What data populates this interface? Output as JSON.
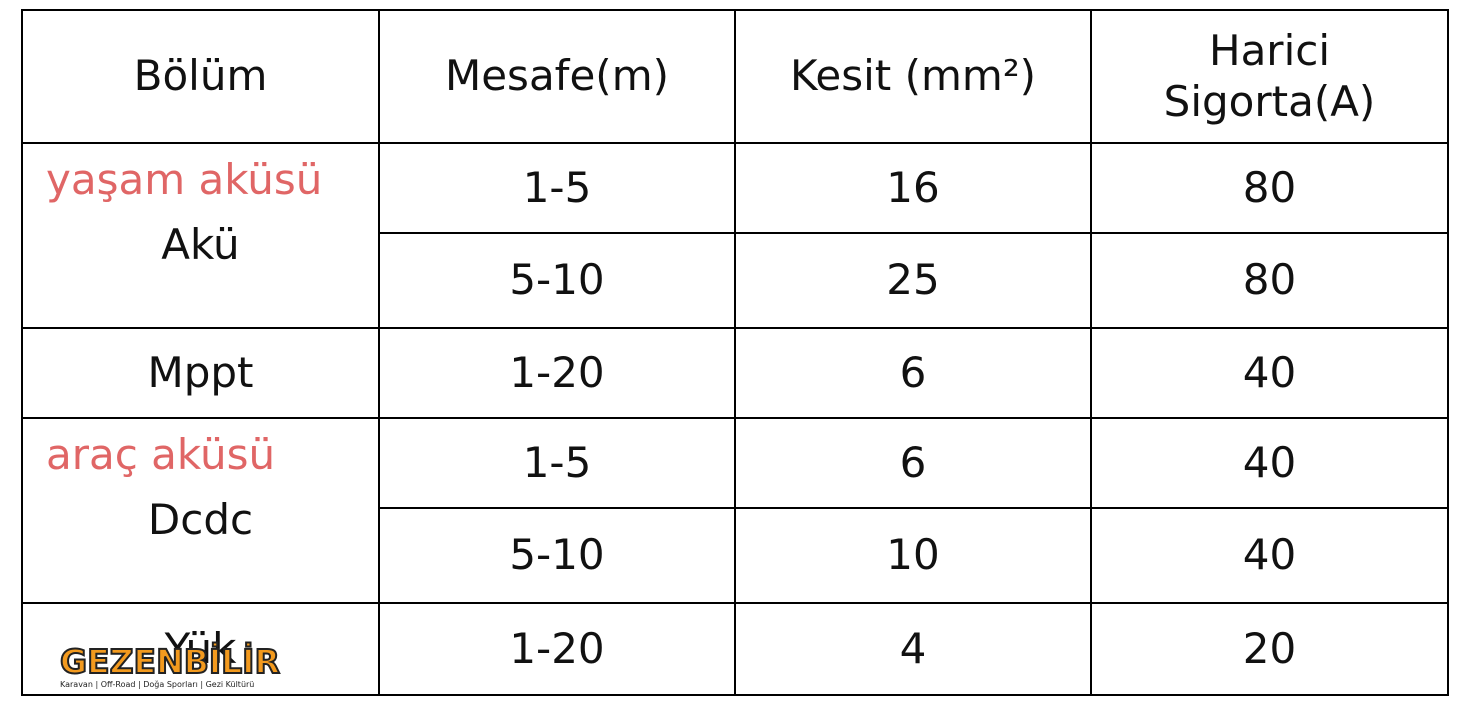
{
  "table": {
    "header": [
      "Bölüm",
      "Mesafe(m)",
      "Kesit (mm²)",
      "Harici Sigorta(A)"
    ],
    "groups": [
      {
        "section": "Akü",
        "annotation": "yaşam aküsü",
        "rows": [
          [
            "1-5",
            16,
            80
          ],
          [
            "5-10",
            25,
            80
          ]
        ]
      },
      {
        "section": "Mppt",
        "rows": [
          [
            "1-20",
            6,
            40
          ]
        ]
      },
      {
        "section": "Dcdc",
        "annotation": "araç aküsü",
        "rows": [
          [
            "1-5",
            6,
            40
          ],
          [
            "5-10",
            10,
            40
          ]
        ]
      },
      {
        "section": "Yük",
        "rows": [
          [
            "1-20",
            4,
            20
          ]
        ]
      }
    ]
  },
  "logo": {
    "title": "GEZENBİLİR",
    "subtitle": "Karavan | Off-Road | Doğa Sporları | Gezi Kültürü"
  }
}
